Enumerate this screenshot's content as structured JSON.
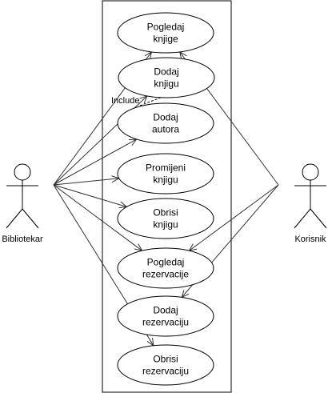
{
  "actors": [
    {
      "id": "bibliotekar",
      "label": "Bibliotekar"
    },
    {
      "id": "korisnik",
      "label": "Korisnik"
    }
  ],
  "use_cases": [
    {
      "id": "pogledaj-knjige",
      "lines": [
        "Pogledaj",
        "knjige"
      ]
    },
    {
      "id": "dodaj-knjigu",
      "lines": [
        "Dodaj",
        "knjigu"
      ]
    },
    {
      "id": "dodaj-autora",
      "lines": [
        "Dodaj",
        "autora"
      ]
    },
    {
      "id": "promijeni-knjigu",
      "lines": [
        "Promijeni",
        "knjigu"
      ]
    },
    {
      "id": "obrisi-knjigu",
      "lines": [
        "Obrisi",
        "knjigu"
      ]
    },
    {
      "id": "pogledaj-rezervacije",
      "lines": [
        "Pogledaj",
        "rezervacije"
      ]
    },
    {
      "id": "dodaj-rezervaciju",
      "lines": [
        "Dodaj",
        "rezervaciju"
      ]
    },
    {
      "id": "obrisi-rezervaciju",
      "lines": [
        "Obrisi",
        "rezervaciju"
      ]
    }
  ],
  "include_relation": {
    "from": "dodaj-autora",
    "to": "dodaj-knjigu",
    "label": "Include"
  },
  "associations": [
    {
      "actor": "bibliotekar",
      "use_case": "pogledaj-knjige"
    },
    {
      "actor": "bibliotekar",
      "use_case": "dodaj-knjigu"
    },
    {
      "actor": "bibliotekar",
      "use_case": "dodaj-autora"
    },
    {
      "actor": "bibliotekar",
      "use_case": "promijeni-knjigu"
    },
    {
      "actor": "bibliotekar",
      "use_case": "obrisi-knjigu"
    },
    {
      "actor": "bibliotekar",
      "use_case": "pogledaj-rezervacije"
    },
    {
      "actor": "bibliotekar",
      "use_case": "obrisi-rezervaciju"
    },
    {
      "actor": "korisnik",
      "use_case": "pogledaj-knjige"
    },
    {
      "actor": "korisnik",
      "use_case": "pogledaj-rezervacije"
    },
    {
      "actor": "korisnik",
      "use_case": "dodaj-rezervaciju"
    }
  ],
  "colors": {
    "stroke": "#000000",
    "line": "#333333",
    "fill": "#ffffff"
  }
}
